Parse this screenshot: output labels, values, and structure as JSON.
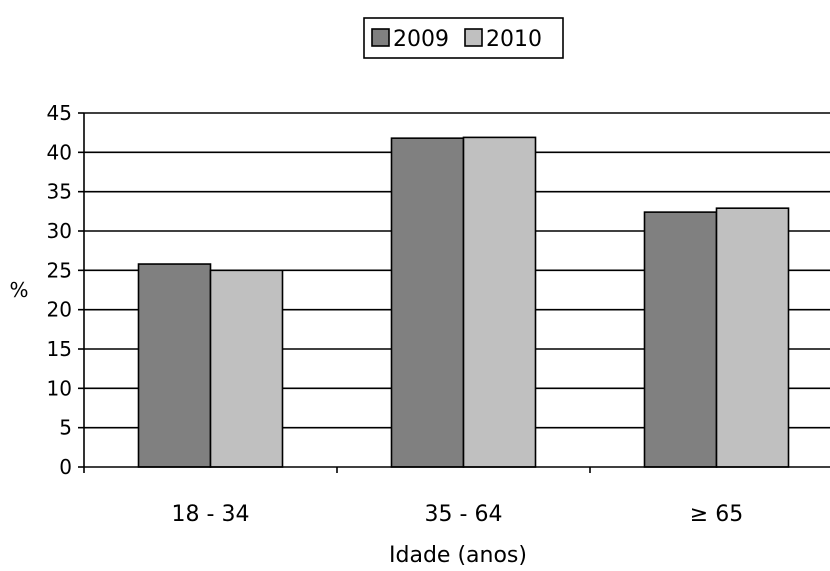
{
  "chart_data": {
    "type": "bar",
    "title": "",
    "xlabel": "Idade (anos)",
    "ylabel": "%",
    "categories": [
      "18 - 34",
      "35 - 64",
      "≥ 65"
    ],
    "series": [
      {
        "name": "2009",
        "values": [
          25.8,
          41.8,
          32.4
        ],
        "color": "#808080"
      },
      {
        "name": "2010",
        "values": [
          25.0,
          41.9,
          32.9
        ],
        "color": "#c0c0c0"
      }
    ],
    "ylim": [
      0,
      45
    ],
    "yticks": [
      0,
      5,
      10,
      15,
      20,
      25,
      30,
      35,
      40,
      45
    ],
    "grid": true,
    "legend_position": "top"
  }
}
